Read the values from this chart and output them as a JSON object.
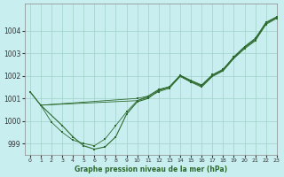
{
  "title": "Graphe pression niveau de la mer (hPa)",
  "bg_color": "#c8eef0",
  "grid_color": "#a0d0c8",
  "line_color": "#2d6a2d",
  "xlim": [
    -0.5,
    23
  ],
  "ylim": [
    998.5,
    1005.2
  ],
  "yticks": [
    999,
    1000,
    1001,
    1002,
    1003,
    1004
  ],
  "xticks": [
    0,
    1,
    2,
    3,
    4,
    5,
    6,
    7,
    8,
    9,
    10,
    11,
    12,
    13,
    14,
    15,
    16,
    17,
    18,
    19,
    20,
    21,
    22,
    23
  ],
  "series": [
    {
      "x": [
        0,
        1,
        3,
        4,
        5,
        6,
        7,
        8,
        9,
        10,
        11,
        12,
        13,
        14,
        15,
        16,
        17,
        18,
        19,
        20,
        21,
        22,
        23
      ],
      "y": [
        1001.3,
        1000.7,
        999.8,
        999.3,
        998.9,
        998.75,
        998.85,
        999.3,
        1000.3,
        1000.85,
        1001.0,
        1001.35,
        1001.5,
        1002.0,
        1001.75,
        1001.55,
        1002.0,
        1002.25,
        1002.8,
        1003.25,
        1003.6,
        1004.35,
        1004.6
      ]
    },
    {
      "x": [
        1,
        10,
        11,
        12,
        13,
        14,
        15,
        16,
        17,
        18,
        19,
        20,
        21,
        22,
        23
      ],
      "y": [
        1000.7,
        1000.9,
        1001.05,
        1001.3,
        1001.45,
        1001.97,
        1001.72,
        1001.5,
        1001.97,
        1002.22,
        1002.77,
        1003.2,
        1003.55,
        1004.28,
        1004.55
      ]
    },
    {
      "x": [
        1,
        10,
        11,
        12,
        13,
        14,
        15,
        16,
        17,
        18,
        19,
        20,
        21,
        22,
        23
      ],
      "y": [
        1000.7,
        1001.0,
        1001.1,
        1001.38,
        1001.5,
        1002.02,
        1001.78,
        1001.57,
        1002.03,
        1002.27,
        1002.83,
        1003.27,
        1003.63,
        1004.32,
        1004.58
      ]
    },
    {
      "x": [
        0,
        1,
        2,
        3,
        4,
        5,
        6,
        7,
        8,
        9,
        10,
        11,
        12,
        13,
        14,
        15,
        16,
        17,
        18,
        19,
        20,
        21,
        22,
        23
      ],
      "y": [
        1001.3,
        1000.7,
        999.95,
        999.5,
        999.15,
        999.0,
        998.9,
        999.2,
        999.8,
        1000.4,
        1000.9,
        1001.1,
        1001.4,
        1001.52,
        1002.03,
        1001.8,
        1001.6,
        1002.05,
        1002.3,
        1002.85,
        1003.3,
        1003.67,
        1004.38,
        1004.62
      ]
    }
  ]
}
